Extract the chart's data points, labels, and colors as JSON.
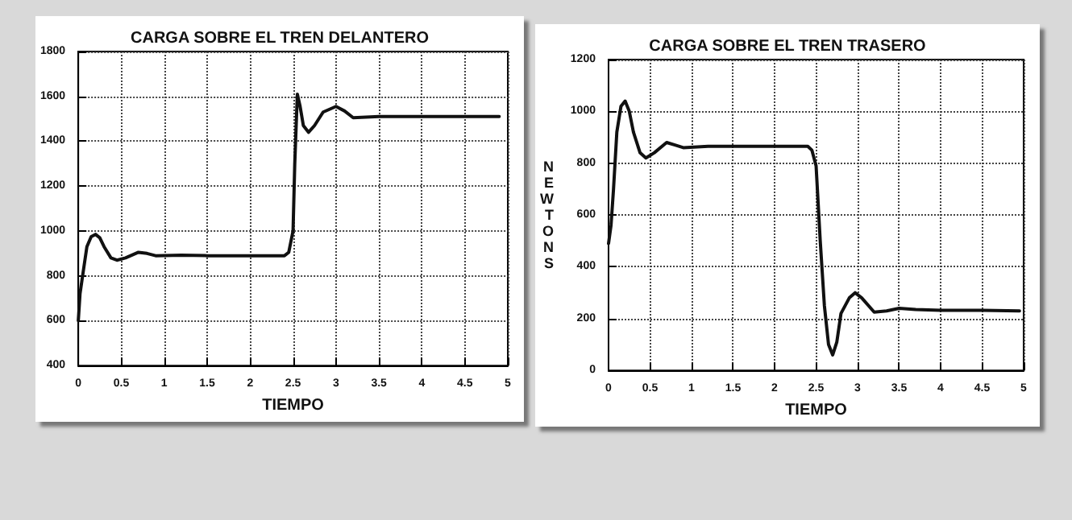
{
  "chart_data": [
    {
      "type": "line",
      "title": "CARGA SOBRE EL TREN DELANTERO",
      "xlabel": "TIEMPO",
      "series": [
        {
          "color": "#111111",
          "x": [
            0,
            0.02,
            0.05,
            0.1,
            0.15,
            0.2,
            0.25,
            0.3,
            0.38,
            0.45,
            0.55,
            0.7,
            0.8,
            0.9,
            1.2,
            1.5,
            2.0,
            2.4,
            2.45,
            2.5,
            2.52,
            2.55,
            2.58,
            2.62,
            2.68,
            2.75,
            2.85,
            3.0,
            3.1,
            3.2,
            3.5,
            4.0,
            4.5,
            4.9
          ],
          "values": [
            600,
            720,
            800,
            930,
            975,
            985,
            970,
            930,
            880,
            870,
            880,
            905,
            900,
            890,
            892,
            890,
            890,
            890,
            905,
            1000,
            1300,
            1610,
            1560,
            1470,
            1440,
            1470,
            1530,
            1555,
            1535,
            1505,
            1510,
            1510,
            1510,
            1510
          ]
        }
      ],
      "xlim": [
        0,
        5
      ],
      "xticks": [
        0,
        0.5,
        1,
        1.5,
        2,
        2.5,
        3,
        3.5,
        4,
        4.5,
        5
      ],
      "ylim": [
        400,
        1800
      ],
      "yticks": [
        400,
        600,
        800,
        1000,
        1200,
        1400,
        1600,
        1800
      ],
      "grid": true,
      "marker": "none",
      "line_style": "solid"
    },
    {
      "type": "line",
      "title": "CARGA SOBRE EL TREN TRASERO",
      "xlabel": "TIEMPO",
      "ylabel": "NEWTONS",
      "series": [
        {
          "color": "#111111",
          "x": [
            0,
            0.03,
            0.06,
            0.1,
            0.15,
            0.2,
            0.25,
            0.3,
            0.38,
            0.45,
            0.55,
            0.7,
            0.8,
            0.9,
            1.2,
            1.5,
            2.0,
            2.4,
            2.45,
            2.5,
            2.55,
            2.6,
            2.65,
            2.7,
            2.75,
            2.8,
            2.9,
            2.97,
            3.05,
            3.2,
            3.35,
            3.5,
            3.7,
            4.0,
            4.5,
            4.95
          ],
          "values": [
            490,
            560,
            700,
            920,
            1020,
            1040,
            1000,
            920,
            840,
            820,
            840,
            880,
            870,
            860,
            865,
            865,
            865,
            865,
            850,
            790,
            500,
            250,
            100,
            60,
            110,
            220,
            280,
            300,
            280,
            225,
            230,
            240,
            235,
            232,
            232,
            230
          ]
        }
      ],
      "xlim": [
        0,
        5
      ],
      "xticks": [
        0,
        0.5,
        1,
        1.5,
        2,
        2.5,
        3,
        3.5,
        4,
        4.5,
        5
      ],
      "ylim": [
        0,
        1200
      ],
      "yticks": [
        0,
        200,
        400,
        600,
        800,
        1000,
        1200
      ],
      "grid": true,
      "marker": "none",
      "line_style": "solid"
    }
  ]
}
